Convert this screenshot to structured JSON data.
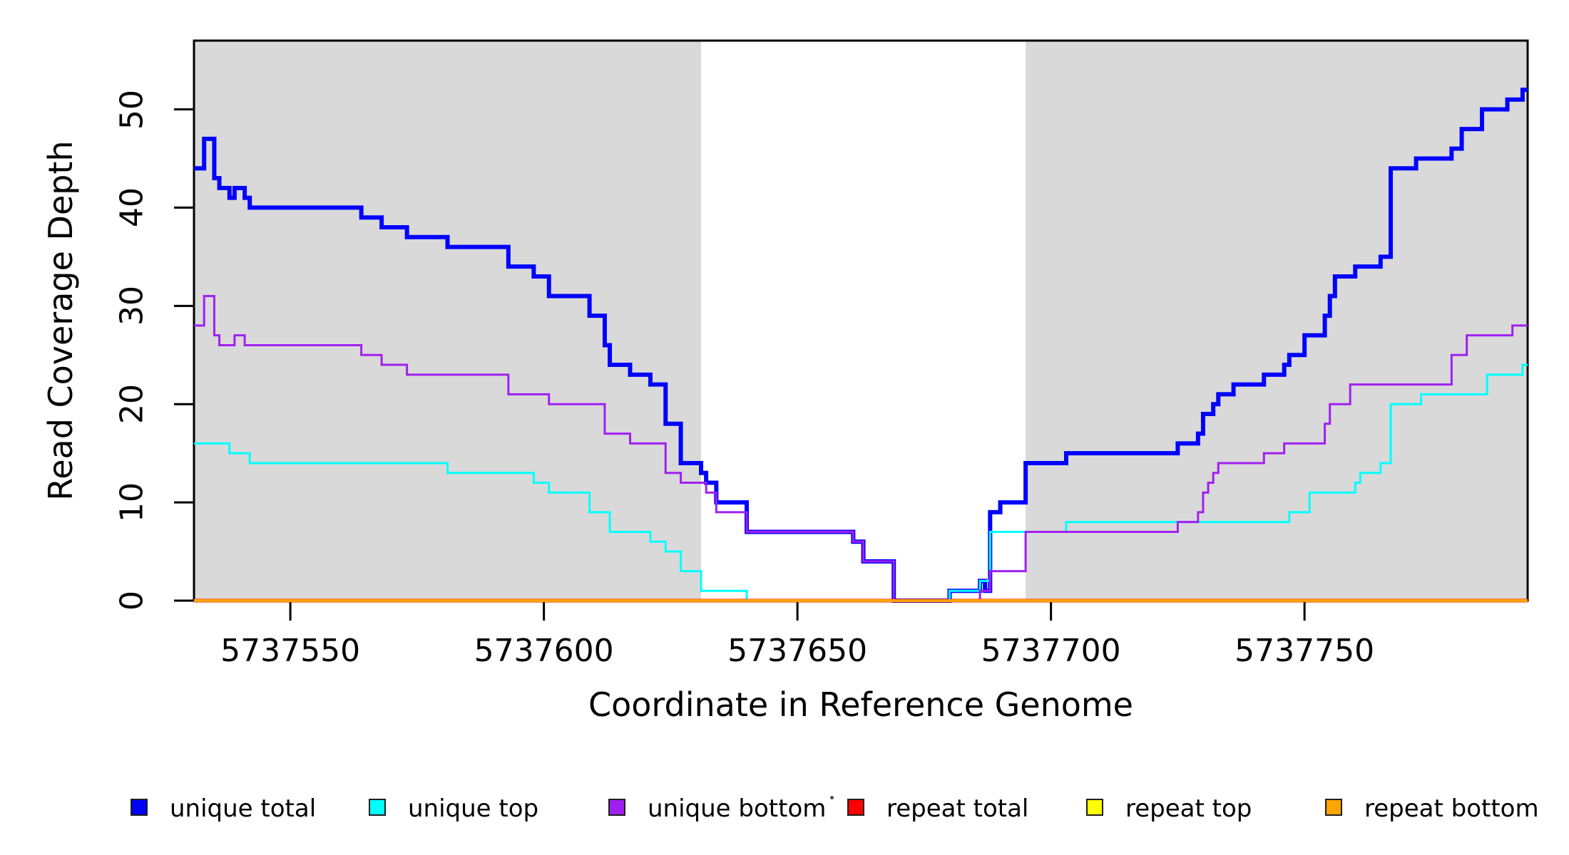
{
  "figure": {
    "background": "#ffffff"
  },
  "chart_data": {
    "type": "line",
    "subtype": "step-coverage",
    "title": "",
    "xlabel": "Coordinate in Reference Genome",
    "ylabel": "Read Coverage Depth",
    "xlim": [
      5737531,
      5737794
    ],
    "ylim": [
      0,
      57
    ],
    "xticks": [
      5737550,
      5737600,
      5737650,
      5737700,
      5737750
    ],
    "yticks": [
      0,
      10,
      20,
      30,
      40,
      50
    ],
    "grid": false,
    "legend_position": "bottom",
    "shade_color": "#d9d9d9",
    "axis_color": "#000000",
    "shaded_regions": [
      {
        "name": "left-repeat-flank",
        "x0": 5737531,
        "x1": 5737631
      },
      {
        "name": "right-repeat-flank",
        "x0": 5737695,
        "x1": 5737794
      }
    ],
    "series": [
      {
        "name": "unique total",
        "color": "#0000ff",
        "width": 6,
        "points": [
          [
            5737531,
            44
          ],
          [
            5737533,
            47
          ],
          [
            5737535,
            43
          ],
          [
            5737536,
            42
          ],
          [
            5737538,
            41
          ],
          [
            5737539,
            42
          ],
          [
            5737541,
            41
          ],
          [
            5737542,
            40
          ],
          [
            5737564,
            39
          ],
          [
            5737568,
            38
          ],
          [
            5737573,
            37
          ],
          [
            5737581,
            36
          ],
          [
            5737593,
            34
          ],
          [
            5737598,
            33
          ],
          [
            5737601,
            31
          ],
          [
            5737609,
            29
          ],
          [
            5737612,
            26
          ],
          [
            5737613,
            24
          ],
          [
            5737617,
            23
          ],
          [
            5737621,
            22
          ],
          [
            5737624,
            18
          ],
          [
            5737627,
            14
          ],
          [
            5737631,
            13
          ],
          [
            5737632,
            12
          ],
          [
            5737634,
            10
          ],
          [
            5737640,
            7
          ],
          [
            5737661,
            6
          ],
          [
            5737663,
            4
          ],
          [
            5737669,
            0
          ],
          [
            5737680,
            1
          ],
          [
            5737686,
            2
          ],
          [
            5737687,
            1
          ],
          [
            5737688,
            9
          ],
          [
            5737690,
            10
          ],
          [
            5737695,
            14
          ],
          [
            5737703,
            15
          ],
          [
            5737725,
            16
          ],
          [
            5737729,
            17
          ],
          [
            5737730,
            19
          ],
          [
            5737732,
            20
          ],
          [
            5737733,
            21
          ],
          [
            5737736,
            22
          ],
          [
            5737742,
            23
          ],
          [
            5737746,
            24
          ],
          [
            5737747,
            25
          ],
          [
            5737750,
            27
          ],
          [
            5737754,
            29
          ],
          [
            5737755,
            31
          ],
          [
            5737756,
            33
          ],
          [
            5737760,
            34
          ],
          [
            5737765,
            35
          ],
          [
            5737767,
            44
          ],
          [
            5737772,
            45
          ],
          [
            5737779,
            46
          ],
          [
            5737781,
            48
          ],
          [
            5737785,
            50
          ],
          [
            5737790,
            51
          ],
          [
            5737793,
            52
          ]
        ]
      },
      {
        "name": "unique top",
        "color": "#00ffff",
        "width": 3,
        "points": [
          [
            5737531,
            16
          ],
          [
            5737538,
            15
          ],
          [
            5737542,
            14
          ],
          [
            5737581,
            13
          ],
          [
            5737598,
            12
          ],
          [
            5737601,
            11
          ],
          [
            5737609,
            9
          ],
          [
            5737613,
            7
          ],
          [
            5737621,
            6
          ],
          [
            5737624,
            5
          ],
          [
            5737627,
            3
          ],
          [
            5737631,
            1
          ],
          [
            5737640,
            0
          ],
          [
            5737680,
            1
          ],
          [
            5737686,
            2
          ],
          [
            5737688,
            7
          ],
          [
            5737703,
            8
          ],
          [
            5737747,
            9
          ],
          [
            5737751,
            11
          ],
          [
            5737760,
            12
          ],
          [
            5737761,
            13
          ],
          [
            5737765,
            14
          ],
          [
            5737767,
            20
          ],
          [
            5737773,
            21
          ],
          [
            5737786,
            23
          ],
          [
            5737793,
            24
          ]
        ]
      },
      {
        "name": "unique bottom",
        "color": "#a020f0",
        "width": 3,
        "points": [
          [
            5737531,
            28
          ],
          [
            5737533,
            31
          ],
          [
            5737535,
            27
          ],
          [
            5737536,
            26
          ],
          [
            5737539,
            27
          ],
          [
            5737541,
            26
          ],
          [
            5737564,
            25
          ],
          [
            5737568,
            24
          ],
          [
            5737573,
            23
          ],
          [
            5737593,
            21
          ],
          [
            5737601,
            20
          ],
          [
            5737612,
            17
          ],
          [
            5737617,
            16
          ],
          [
            5737624,
            13
          ],
          [
            5737627,
            12
          ],
          [
            5737632,
            11
          ],
          [
            5737634,
            9
          ],
          [
            5737640,
            7
          ],
          [
            5737661,
            6
          ],
          [
            5737663,
            4
          ],
          [
            5737669,
            0
          ],
          [
            5737686,
            1
          ],
          [
            5737688,
            3
          ],
          [
            5737695,
            7
          ],
          [
            5737725,
            8
          ],
          [
            5737729,
            9
          ],
          [
            5737730,
            11
          ],
          [
            5737731,
            12
          ],
          [
            5737732,
            13
          ],
          [
            5737733,
            14
          ],
          [
            5737742,
            15
          ],
          [
            5737746,
            16
          ],
          [
            5737754,
            18
          ],
          [
            5737755,
            20
          ],
          [
            5737759,
            22
          ],
          [
            5737779,
            25
          ],
          [
            5737782,
            27
          ],
          [
            5737791,
            28
          ]
        ]
      },
      {
        "name": "repeat top",
        "color": "#ffff00",
        "width": 4,
        "points": [
          [
            5737531,
            0
          ]
        ]
      },
      {
        "name": "repeat total",
        "color": "#ff0000",
        "width": 5,
        "points": [
          [
            5737531,
            0
          ]
        ]
      },
      {
        "name": "repeat bottom",
        "color": "#ffa500",
        "width": 4,
        "points": [
          [
            5737531,
            0
          ]
        ]
      }
    ],
    "legend": [
      {
        "label": "unique total",
        "color": "#0000ff"
      },
      {
        "label": "unique top",
        "color": "#00ffff"
      },
      {
        "label": "unique bottom",
        "color": "#a020f0"
      },
      {
        "label": "repeat total",
        "color": "#ff0000"
      },
      {
        "label": "repeat top",
        "color": "#ffff00"
      },
      {
        "label": "repeat bottom",
        "color": "#ffa500"
      }
    ]
  }
}
